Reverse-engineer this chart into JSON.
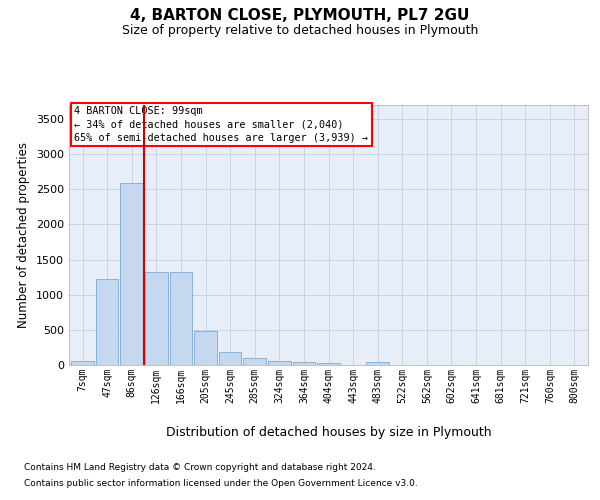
{
  "title": "4, BARTON CLOSE, PLYMOUTH, PL7 2GU",
  "subtitle": "Size of property relative to detached houses in Plymouth",
  "xlabel": "Distribution of detached houses by size in Plymouth",
  "ylabel": "Number of detached properties",
  "footnote1": "Contains HM Land Registry data © Crown copyright and database right 2024.",
  "footnote2": "Contains public sector information licensed under the Open Government Licence v3.0.",
  "annotation_title": "4 BARTON CLOSE: 99sqm",
  "annotation_line1": "← 34% of detached houses are smaller (2,040)",
  "annotation_line2": "65% of semi-detached houses are larger (3,939) →",
  "bar_color": "#c5d8f0",
  "bar_edge_color": "#7aabd4",
  "grid_color": "#c8d4e4",
  "bg_color": "#e8eef8",
  "vline_color": "#cc0000",
  "vline_x": 2.5,
  "categories": [
    "7sqm",
    "47sqm",
    "86sqm",
    "126sqm",
    "166sqm",
    "205sqm",
    "245sqm",
    "285sqm",
    "324sqm",
    "364sqm",
    "404sqm",
    "443sqm",
    "483sqm",
    "522sqm",
    "562sqm",
    "602sqm",
    "641sqm",
    "681sqm",
    "721sqm",
    "760sqm",
    "800sqm"
  ],
  "values": [
    55,
    1220,
    2590,
    1330,
    1330,
    490,
    185,
    100,
    50,
    45,
    30,
    0,
    40,
    0,
    0,
    0,
    0,
    0,
    0,
    0,
    0
  ],
  "ylim": [
    0,
    3700
  ],
  "yticks": [
    0,
    500,
    1000,
    1500,
    2000,
    2500,
    3000,
    3500
  ]
}
